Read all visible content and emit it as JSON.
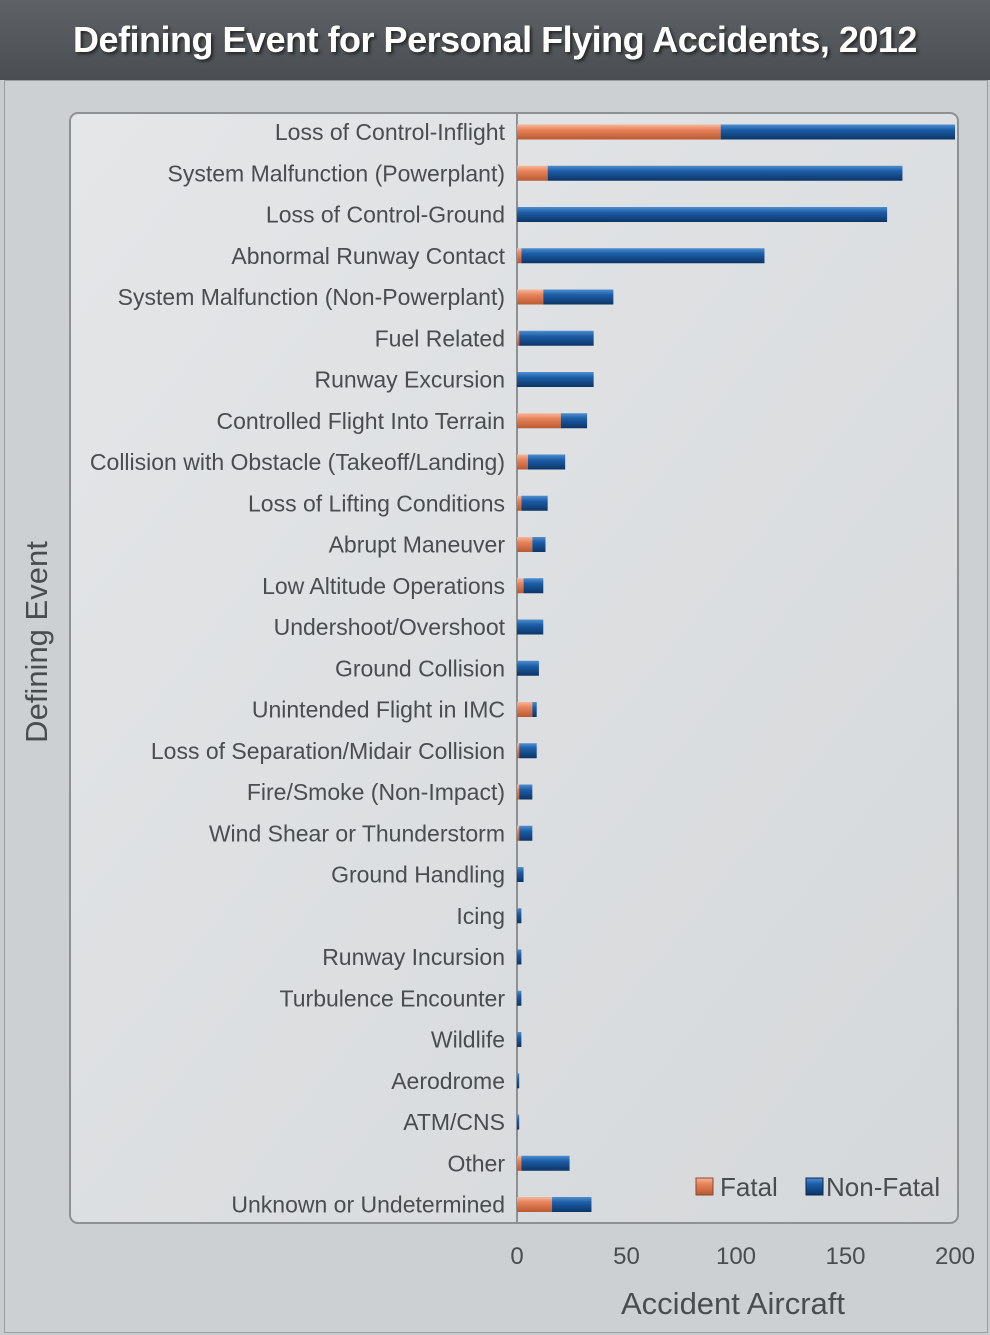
{
  "chart_data": {
    "type": "bar",
    "orientation": "horizontal",
    "stacked": true,
    "title": "Defining Event for Personal Flying Accidents, 2012",
    "xlabel": "Accident Aircraft",
    "ylabel": "Defining  Event",
    "xlim": [
      0,
      200
    ],
    "xticks": [
      "0",
      "50",
      "100",
      "150",
      "200"
    ],
    "legend_position": "bottom-right",
    "categories": [
      "Loss of Control-Inflight",
      "System Malfunction (Powerplant)",
      "Loss of Control-Ground",
      "Abnormal Runway Contact",
      "System Malfunction (Non-Powerplant)",
      "Fuel Related",
      "Runway Excursion",
      "Controlled Flight Into Terrain",
      "Collision with Obstacle (Takeoff/Landing)",
      "Loss of Lifting Conditions",
      "Abrupt Maneuver",
      "Low Altitude Operations",
      "Undershoot/Overshoot",
      "Ground Collision",
      "Unintended Flight in IMC",
      "Loss of Separation/Midair Collision",
      "Fire/Smoke (Non-Impact)",
      "Wind Shear or Thunderstorm",
      "Ground Handling",
      "Icing",
      "Runway Incursion",
      "Turbulence Encounter",
      "Wildlife",
      "Aerodrome",
      "ATM/CNS",
      "Other",
      "Unknown or Undetermined"
    ],
    "series": [
      {
        "name": "Fatal",
        "color": "#e07a50",
        "values": [
          93,
          14,
          0,
          2,
          12,
          1,
          0,
          20,
          5,
          2,
          7,
          3,
          0,
          0,
          7,
          1,
          1,
          1,
          0,
          0,
          0,
          0,
          0,
          0,
          0,
          2,
          16
        ]
      },
      {
        "name": "Non-Fatal",
        "color": "#1b5aa0",
        "values": [
          107,
          162,
          169,
          111,
          32,
          34,
          35,
          12,
          17,
          12,
          6,
          9,
          12,
          10,
          2,
          8,
          6,
          6,
          3,
          2,
          2,
          2,
          2,
          1,
          1,
          22,
          18
        ]
      }
    ]
  }
}
